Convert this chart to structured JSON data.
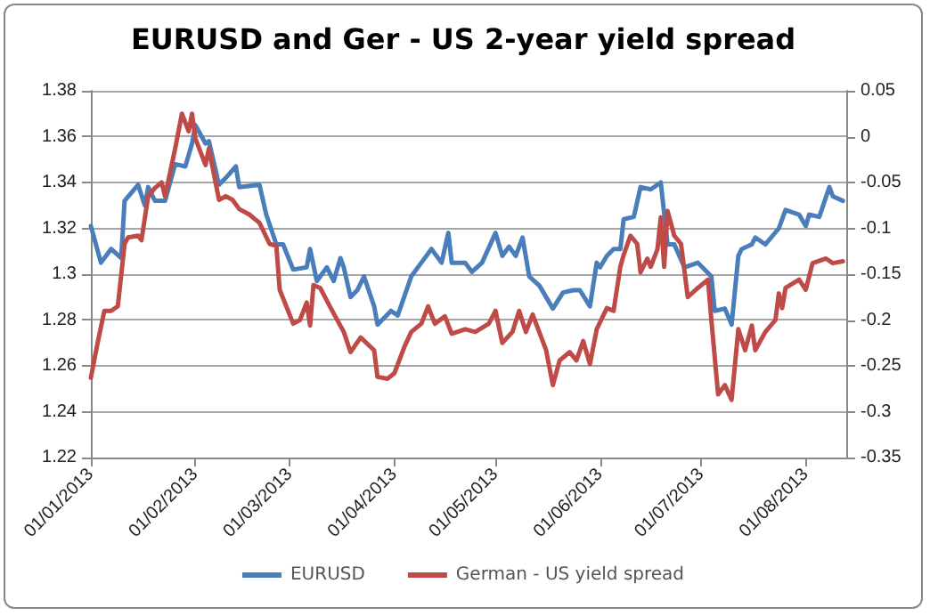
{
  "chart_data": {
    "type": "line",
    "title": "EURUSD and Ger - US 2-year yield spread",
    "grid": "y",
    "legend": "bottom",
    "marker": "none",
    "line_style": "solid",
    "xlim": [
      "2013-01-01",
      "2013-08-13"
    ],
    "xticks": [
      {
        "value": "2013-01-01",
        "label": "01/01/2013"
      },
      {
        "value": "2013-02-01",
        "label": "01/02/2013"
      },
      {
        "value": "2013-03-01",
        "label": "01/03/2013"
      },
      {
        "value": "2013-04-01",
        "label": "01/04/2013"
      },
      {
        "value": "2013-05-01",
        "label": "01/05/2013"
      },
      {
        "value": "2013-06-01",
        "label": "01/06/2013"
      },
      {
        "value": "2013-07-01",
        "label": "01/07/2013"
      },
      {
        "value": "2013-08-01",
        "label": "01/08/2013"
      }
    ],
    "ylim": [
      1.22,
      1.38
    ],
    "yticks": [
      1.22,
      1.24,
      1.26,
      1.28,
      1.3,
      1.32,
      1.34,
      1.36,
      1.38
    ],
    "y2lim": [
      -0.35,
      0.05
    ],
    "y2ticks": [
      -0.35,
      -0.3,
      -0.25,
      -0.2,
      -0.15,
      -0.1,
      -0.05,
      0,
      0.05
    ],
    "series": [
      {
        "name": "EURUSD",
        "color": "#4a7ebb",
        "x": [
          "2013-01-01",
          "2013-01-04",
          "2013-01-07",
          "2013-01-10",
          "2013-01-11",
          "2013-01-15",
          "2013-01-17",
          "2013-01-18",
          "2013-01-20",
          "2013-01-23",
          "2013-01-26",
          "2013-01-29",
          "2013-01-31",
          "2013-02-01",
          "2013-02-04",
          "2013-02-05",
          "2013-02-08",
          "2013-02-10",
          "2013-02-13",
          "2013-02-14",
          "2013-02-20",
          "2013-02-22",
          "2013-02-25",
          "2013-02-27",
          "2013-03-02",
          "2013-03-06",
          "2013-03-07",
          "2013-03-09",
          "2013-03-12",
          "2013-03-14",
          "2013-03-16",
          "2013-03-17",
          "2013-03-19",
          "2013-03-21",
          "2013-03-23",
          "2013-03-26",
          "2013-03-27",
          "2013-03-31",
          "2013-04-02",
          "2013-04-06",
          "2013-04-09",
          "2013-04-12",
          "2013-04-15",
          "2013-04-17",
          "2013-04-18",
          "2013-04-22",
          "2013-04-24",
          "2013-04-27",
          "2013-05-01",
          "2013-05-03",
          "2013-05-05",
          "2013-05-07",
          "2013-05-09",
          "2013-05-11",
          "2013-05-14",
          "2013-05-18",
          "2013-05-21",
          "2013-05-24",
          "2013-05-26",
          "2013-05-29",
          "2013-05-31",
          "2013-06-01",
          "2013-06-03",
          "2013-06-05",
          "2013-06-07",
          "2013-06-08",
          "2013-06-11",
          "2013-06-13",
          "2013-06-16",
          "2013-06-19",
          "2013-06-21",
          "2013-06-23",
          "2013-06-26",
          "2013-06-30",
          "2013-07-04",
          "2013-07-05",
          "2013-07-08",
          "2013-07-10",
          "2013-07-12",
          "2013-07-13",
          "2013-07-16",
          "2013-07-17",
          "2013-07-20",
          "2013-07-24",
          "2013-07-26",
          "2013-07-30",
          "2013-08-01",
          "2013-08-02",
          "2013-08-05",
          "2013-08-08",
          "2013-08-09",
          "2013-08-12"
        ],
        "values": [
          1.321,
          1.305,
          1.311,
          1.307,
          1.332,
          1.339,
          1.33,
          1.338,
          1.332,
          1.332,
          1.348,
          1.347,
          1.357,
          1.365,
          1.357,
          1.358,
          1.339,
          1.342,
          1.347,
          1.338,
          1.339,
          1.326,
          1.313,
          1.313,
          1.302,
          1.303,
          1.311,
          1.297,
          1.303,
          1.297,
          1.307,
          1.303,
          1.29,
          1.293,
          1.299,
          1.286,
          1.278,
          1.284,
          1.282,
          1.299,
          1.305,
          1.311,
          1.305,
          1.318,
          1.305,
          1.305,
          1.301,
          1.305,
          1.318,
          1.308,
          1.312,
          1.308,
          1.316,
          1.299,
          1.295,
          1.285,
          1.292,
          1.293,
          1.293,
          1.286,
          1.305,
          1.303,
          1.308,
          1.311,
          1.311,
          1.324,
          1.325,
          1.338,
          1.337,
          1.34,
          1.313,
          1.313,
          1.303,
          1.305,
          1.299,
          1.284,
          1.285,
          1.278,
          1.308,
          1.311,
          1.313,
          1.316,
          1.313,
          1.32,
          1.328,
          1.326,
          1.321,
          1.326,
          1.325,
          1.338,
          1.334,
          1.332
        ]
      },
      {
        "name": "German - US yield spread",
        "color": "#be4b48",
        "axis": "y2",
        "x": [
          "2013-01-01",
          "2013-01-03",
          "2013-01-05",
          "2013-01-07",
          "2013-01-09",
          "2013-01-11",
          "2013-01-12",
          "2013-01-15",
          "2013-01-16",
          "2013-01-18",
          "2013-01-20",
          "2013-01-22",
          "2013-01-23",
          "2013-01-26",
          "2013-01-28",
          "2013-01-30",
          "2013-01-31",
          "2013-02-01",
          "2013-02-04",
          "2013-02-05",
          "2013-02-08",
          "2013-02-10",
          "2013-02-12",
          "2013-02-14",
          "2013-02-17",
          "2013-02-20",
          "2013-02-23",
          "2013-02-25",
          "2013-02-26",
          "2013-03-02",
          "2013-03-04",
          "2013-03-06",
          "2013-03-07",
          "2013-03-08",
          "2013-03-10",
          "2013-03-13",
          "2013-03-17",
          "2013-03-19",
          "2013-03-22",
          "2013-03-26",
          "2013-03-27",
          "2013-03-30",
          "2013-04-01",
          "2013-04-04",
          "2013-04-06",
          "2013-04-09",
          "2013-04-11",
          "2013-04-13",
          "2013-04-16",
          "2013-04-18",
          "2013-04-22",
          "2013-04-25",
          "2013-04-29",
          "2013-05-01",
          "2013-05-03",
          "2013-05-06",
          "2013-05-08",
          "2013-05-10",
          "2013-05-12",
          "2013-05-16",
          "2013-05-18",
          "2013-05-20",
          "2013-05-23",
          "2013-05-25",
          "2013-05-27",
          "2013-05-29",
          "2013-05-31",
          "2013-06-03",
          "2013-06-05",
          "2013-06-07",
          "2013-06-08",
          "2013-06-10",
          "2013-06-12",
          "2013-06-13",
          "2013-06-15",
          "2013-06-16",
          "2013-06-18",
          "2013-06-19",
          "2013-06-20",
          "2013-06-21",
          "2013-06-23",
          "2013-06-25",
          "2013-06-27",
          "2013-06-30",
          "2013-07-03",
          "2013-07-04",
          "2013-07-06",
          "2013-07-08",
          "2013-07-10",
          "2013-07-12",
          "2013-07-14",
          "2013-07-16",
          "2013-07-17",
          "2013-07-20",
          "2013-07-23",
          "2013-07-24",
          "2013-07-25",
          "2013-07-26",
          "2013-07-30",
          "2013-08-01",
          "2013-08-03",
          "2013-08-07",
          "2013-08-09",
          "2013-08-12"
        ],
        "values": [
          -0.263,
          -0.225,
          -0.19,
          -0.19,
          -0.185,
          -0.117,
          -0.11,
          -0.108,
          -0.113,
          -0.065,
          -0.056,
          -0.05,
          -0.065,
          -0.013,
          0.025,
          0.006,
          0.025,
          -0.002,
          -0.031,
          -0.013,
          -0.069,
          -0.065,
          -0.069,
          -0.079,
          -0.085,
          -0.094,
          -0.117,
          -0.119,
          -0.167,
          -0.204,
          -0.2,
          -0.181,
          -0.206,
          -0.162,
          -0.165,
          -0.186,
          -0.213,
          -0.235,
          -0.219,
          -0.233,
          -0.262,
          -0.264,
          -0.258,
          -0.229,
          -0.213,
          -0.204,
          -0.185,
          -0.204,
          -0.196,
          -0.215,
          -0.21,
          -0.213,
          -0.204,
          -0.19,
          -0.225,
          -0.213,
          -0.19,
          -0.213,
          -0.194,
          -0.233,
          -0.271,
          -0.244,
          -0.235,
          -0.244,
          -0.223,
          -0.248,
          -0.21,
          -0.187,
          -0.19,
          -0.142,
          -0.129,
          -0.108,
          -0.117,
          -0.148,
          -0.133,
          -0.142,
          -0.123,
          -0.088,
          -0.142,
          -0.081,
          -0.108,
          -0.117,
          -0.175,
          -0.165,
          -0.156,
          -0.2,
          -0.281,
          -0.271,
          -0.287,
          -0.21,
          -0.233,
          -0.206,
          -0.233,
          -0.213,
          -0.2,
          -0.171,
          -0.187,
          -0.165,
          -0.156,
          -0.167,
          -0.138,
          -0.133,
          -0.138,
          -0.136
        ]
      }
    ]
  }
}
